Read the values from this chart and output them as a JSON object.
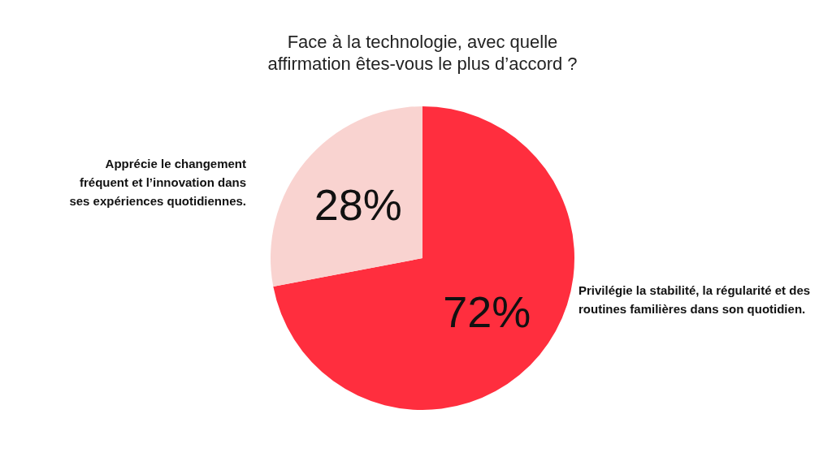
{
  "chart_data": {
    "type": "pie",
    "title": "Face à la technologie, avec quelle affirmation êtes-vous le plus d’accord ?",
    "categories": [
      "Privilégie la stabilité, la régularité et des routines familières dans son quotidien.",
      "Apprécie le changement fréquent et l’innovation dans ses expériences quotidiennes."
    ],
    "values": [
      72,
      28
    ],
    "colors": [
      "#ff2e3e",
      "#f9d3d0"
    ],
    "value_labels": [
      "72%",
      "28%"
    ],
    "legend": false
  }
}
